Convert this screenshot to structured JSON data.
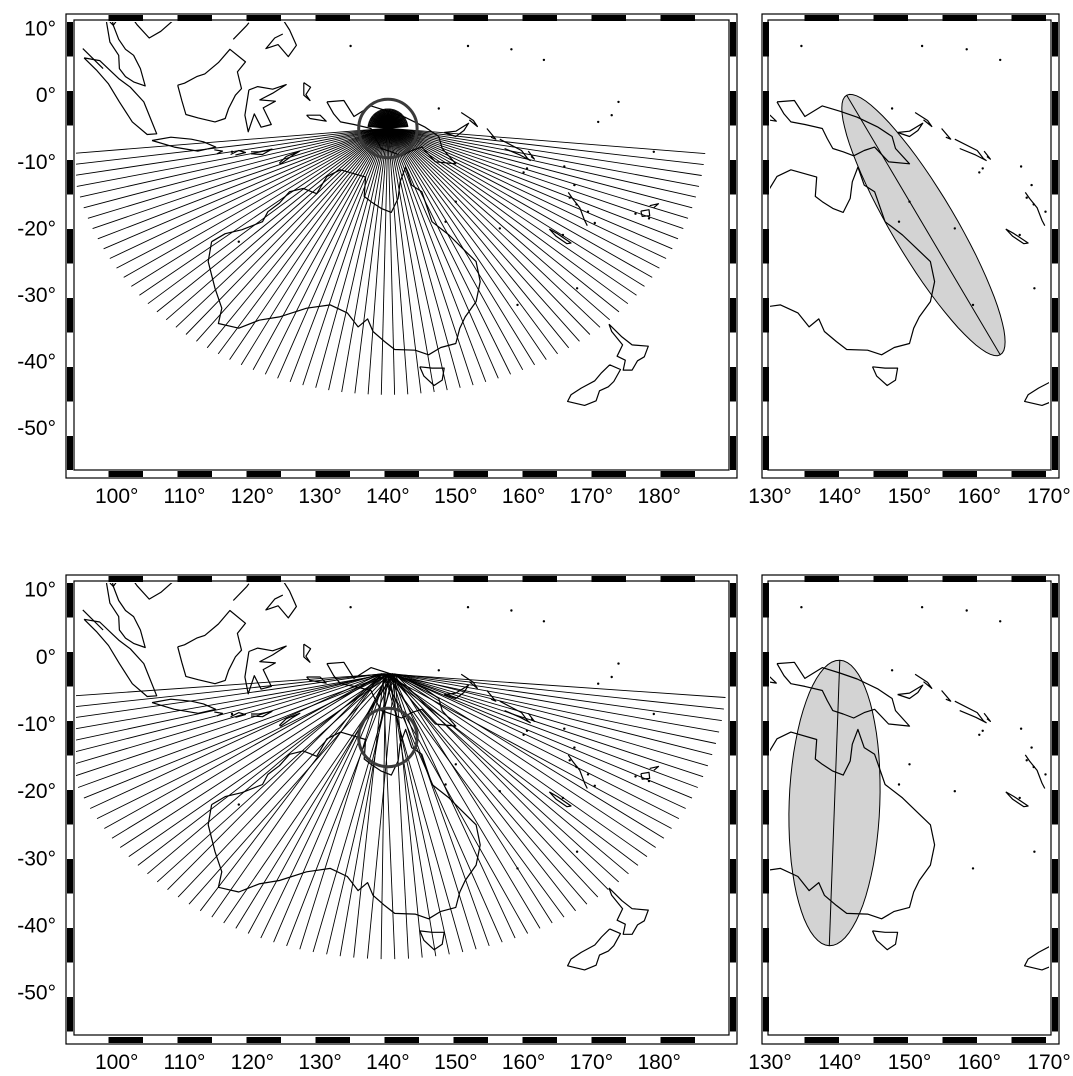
{
  "figure": {
    "panels": [
      {
        "id": "top",
        "main_map": {
          "lon_labels": [
            "100°",
            "110°",
            "120°",
            "130°",
            "140°",
            "150°",
            "160°",
            "170°",
            "180°"
          ],
          "lat_labels": [
            "10°",
            "0°",
            "-10°",
            "-20°",
            "-30°",
            "-40°",
            "-50°"
          ],
          "lon_range": [
            94,
            190
          ],
          "lat_range": [
            -56,
            11
          ],
          "circle": {
            "lon": 140,
            "lat": -5,
            "radius_deg": 4.3
          },
          "ray_pattern": "converging to circle",
          "ray_count": 72
        },
        "inset_map": {
          "lon_labels": [
            "130°",
            "140°",
            "150°",
            "160°",
            "170°"
          ],
          "lon_range": [
            130,
            170
          ],
          "lat_range": [
            -56,
            11
          ],
          "ellipse": {
            "start": [
              141,
              0
            ],
            "end": [
              163,
              -39
            ],
            "width_deg": 4.6
          }
        }
      },
      {
        "id": "bottom",
        "main_map": {
          "lon_labels": [
            "100°",
            "110°",
            "120°",
            "130°",
            "140°",
            "150°",
            "160°",
            "170°",
            "180°"
          ],
          "lat_labels": [
            "10°",
            "0°",
            "-10°",
            "-20°",
            "-30°",
            "-40°",
            "-50°"
          ],
          "lon_range": [
            94,
            190
          ],
          "lat_range": [
            -56,
            11
          ],
          "circle": {
            "lon": 140,
            "lat": -12,
            "radius_deg": 4.3
          },
          "ray_pattern": "converging to point",
          "focus": {
            "lon": 140,
            "lat": -2.5
          },
          "ray_count": 74
        },
        "inset_map": {
          "lon_labels": [
            "130°",
            "140°",
            "150°",
            "160°",
            "170°"
          ],
          "lon_range": [
            130,
            170
          ],
          "lat_range": [
            -56,
            11
          ],
          "ellipse": {
            "start": [
              140,
              -0.5
            ],
            "end": [
              138.5,
              -43
            ],
            "width_deg": 6.5
          }
        }
      }
    ]
  }
}
